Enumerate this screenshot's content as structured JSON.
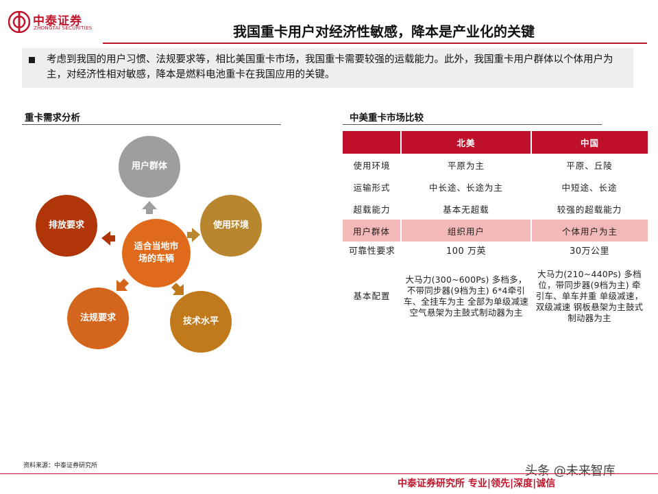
{
  "header": {
    "logo_cn": "中泰证券",
    "logo_en": "ZHONGTAI SECURITIES",
    "title": "我国重卡用户对经济性敏感，降本是产业化的关键"
  },
  "summary": {
    "text": "考虑到我国的用户习惯、法规要求等，相比美国重卡市场，我国重卡需要较强的运载能力。此外，我国重卡用户群体以个体用户为主，对经济性相对敏感，降本是燃料电池重卡在我国应用的关键。"
  },
  "left_section": {
    "title": "重卡需求分析",
    "center": "适合当地市场的车辆",
    "nodes": [
      {
        "label": "用户群体",
        "color": "#9e9e9e"
      },
      {
        "label": "使用环境",
        "color": "#b8862f"
      },
      {
        "label": "技术水平",
        "color": "#c07a1c"
      },
      {
        "label": "法规要求",
        "color": "#d4651c"
      },
      {
        "label": "排放要求",
        "color": "#b0360a"
      }
    ],
    "center_color": "#e06a1b"
  },
  "right_section": {
    "title": "中美重卡市场比较",
    "table": {
      "headers": [
        "",
        "北美",
        "中国"
      ],
      "rows": [
        {
          "label": "使用环境",
          "na": "平原为主",
          "cn": "平原、丘陵"
        },
        {
          "label": "运输形式",
          "na": "中长途、长途为主",
          "cn": "中短途、长途"
        },
        {
          "label": "超载能力",
          "na": "基本无超载",
          "cn": "较强的超载能力"
        },
        {
          "label": "用户群体",
          "na": "组织用户",
          "cn": "个体用户为主"
        },
        {
          "label": "可靠性要求",
          "na": "100 万英",
          "cn": "30万公里"
        },
        {
          "label": "基本配置",
          "na": "大马力(300~600Ps) 多档多，不带同步器(9档为主) 6*4牵引车、全挂车为主 全部为单级减速 空气悬架为主鼓式制动器为主",
          "cn": "大马力(210~440Ps) 多档位，带同步器(9档为主) 牵引车、单车并重 单级减速，双级减速 钢板悬架为主鼓式制动器为主"
        }
      ]
    }
  },
  "footer": {
    "source": "资料来源：中泰证券研究所",
    "slogan": "中泰证券研究所  专业|领先|深度|诚信",
    "watermark": "头条 @未来智库"
  },
  "colors": {
    "brand_red": "#c0152b",
    "table_header": "#bf102b",
    "table_highlight": "#f3b8b8"
  }
}
